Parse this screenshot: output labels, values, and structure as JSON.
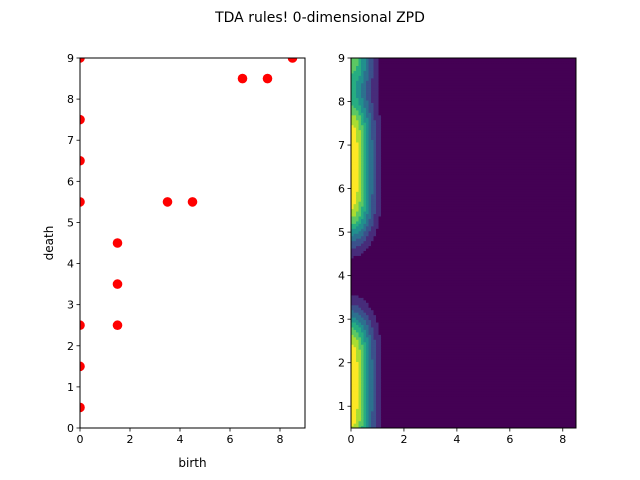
{
  "title": "TDA rules! 0-dimensional ZPD",
  "chart_data": [
    {
      "type": "scatter",
      "title": "",
      "xlabel": "birth",
      "ylabel": "death",
      "xlim": [
        0,
        9
      ],
      "ylim": [
        0,
        9
      ],
      "xticks": [
        0,
        2,
        4,
        6,
        8
      ],
      "yticks": [
        0,
        1,
        2,
        3,
        4,
        5,
        6,
        7,
        8,
        9
      ],
      "x_tick_labels": [
        "0",
        "2",
        "4",
        "6",
        "8"
      ],
      "y_tick_labels": [
        "0",
        "1",
        "2",
        "3",
        "4",
        "5",
        "6",
        "7",
        "8",
        "9"
      ],
      "color": "#ff0000",
      "points": [
        {
          "x": 0,
          "y": 0.5
        },
        {
          "x": 0,
          "y": 1.5
        },
        {
          "x": 0,
          "y": 2.5
        },
        {
          "x": 0,
          "y": 5.5
        },
        {
          "x": 0,
          "y": 6.5
        },
        {
          "x": 0,
          "y": 7.5
        },
        {
          "x": 0,
          "y": 9.0
        },
        {
          "x": 1.5,
          "y": 2.5
        },
        {
          "x": 1.5,
          "y": 3.5
        },
        {
          "x": 1.5,
          "y": 4.5
        },
        {
          "x": 3.5,
          "y": 5.5
        },
        {
          "x": 4.5,
          "y": 5.5
        },
        {
          "x": 6.5,
          "y": 8.5
        },
        {
          "x": 7.5,
          "y": 8.5
        },
        {
          "x": 8.5,
          "y": 9.0
        }
      ]
    },
    {
      "type": "heatmap",
      "subtype": "filled-contour",
      "colormap": "viridis",
      "title": "",
      "xlabel": "",
      "ylabel": "",
      "xlim": [
        0,
        8.5
      ],
      "ylim": [
        0.5,
        9
      ],
      "xticks": [
        0,
        2,
        4,
        6,
        8
      ],
      "yticks": [
        1,
        2,
        3,
        4,
        5,
        6,
        7,
        8,
        9
      ],
      "x_tick_labels": [
        "0",
        "2",
        "4",
        "6",
        "8"
      ],
      "y_tick_labels": [
        "1",
        "2",
        "3",
        "4",
        "5",
        "6",
        "7",
        "8",
        "9"
      ],
      "level_colors": [
        "#440154",
        "#472c7a",
        "#3b518b",
        "#2c718e",
        "#21908d",
        "#27ad81",
        "#5cc863",
        "#aadc32",
        "#fde725"
      ],
      "note_none": ""
    }
  ]
}
